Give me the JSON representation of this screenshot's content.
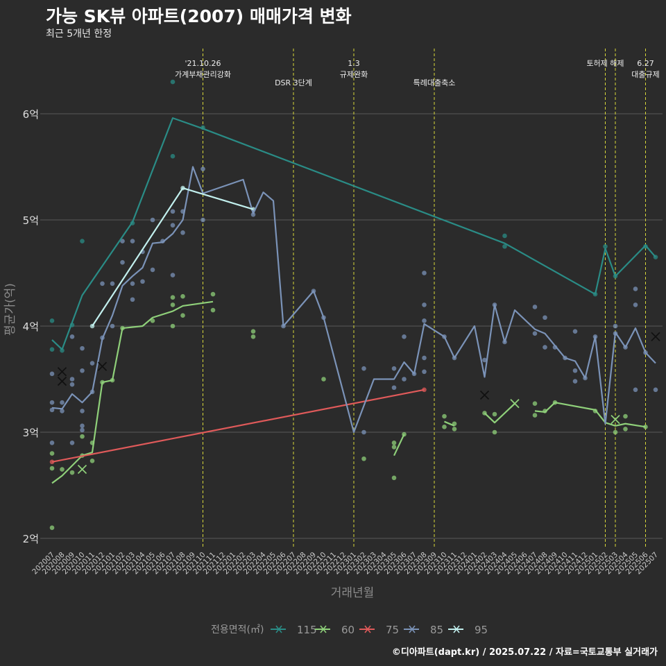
{
  "title": "가능 SK뷰 아파트(2007) 매매가격 변화",
  "subtitle": "최근 5개년 한정",
  "caption": "©디아파트(dapt.kr) / 2025.07.22 / 자료=국토교통부 실거래가",
  "chart_data": {
    "type": "line",
    "xlabel": "거래년월",
    "ylabel": "평균가(억)",
    "x": [
      "202007",
      "202008",
      "202009",
      "202010",
      "202011",
      "202012",
      "202101",
      "202102",
      "202103",
      "202104",
      "202105",
      "202106",
      "202107",
      "202108",
      "202109",
      "202110",
      "202111",
      "202112",
      "202201",
      "202202",
      "202203",
      "202204",
      "202205",
      "202206",
      "202207",
      "202208",
      "202209",
      "202210",
      "202211",
      "202212",
      "202301",
      "202302",
      "202303",
      "202304",
      "202305",
      "202306",
      "202307",
      "202308",
      "202309",
      "202310",
      "202311",
      "202312",
      "202401",
      "202402",
      "202403",
      "202404",
      "202405",
      "202406",
      "202407",
      "202408",
      "202409",
      "202410",
      "202411",
      "202412",
      "202501",
      "202502",
      "202503",
      "202504",
      "202505",
      "202506",
      "202507"
    ],
    "yticks": [
      {
        "value": 2,
        "label": "2억"
      },
      {
        "value": 3,
        "label": "3억"
      },
      {
        "value": 4,
        "label": "4억"
      },
      {
        "value": 5,
        "label": "5억"
      },
      {
        "value": 6,
        "label": "6억"
      }
    ],
    "ylim": [
      1.9,
      6.45
    ],
    "grid": "horizontal",
    "legend": {
      "title": "전용면적(㎡)",
      "position": "bottom"
    },
    "events": [
      {
        "x": "202110",
        "lines": [
          "'21.10.26",
          "가계부채관리강화"
        ],
        "level": 1
      },
      {
        "x": "202207",
        "lines": [
          "DSR 3단계"
        ],
        "level": 2
      },
      {
        "x": "202301",
        "lines": [
          "1.3",
          "규제완화"
        ],
        "level": 1
      },
      {
        "x": "202309",
        "lines": [
          "특례대출축소"
        ],
        "level": 2
      },
      {
        "x": "202502",
        "lines": [
          "토허제 해제"
        ],
        "level": 1
      },
      {
        "x": "202503",
        "lines": [],
        "level": 1
      },
      {
        "x": "202506",
        "lines": [
          "6.27",
          "대출규제"
        ],
        "level": 1
      }
    ],
    "series": [
      {
        "name": "115",
        "color": "#2a8c86",
        "line": [
          [
            "202007",
            3.87
          ],
          [
            "202008",
            3.78
          ],
          [
            "202010",
            4.29
          ],
          [
            "202103",
            4.98
          ],
          [
            "202107",
            5.96
          ],
          [
            "202110",
            5.86
          ],
          [
            "202404",
            4.78
          ],
          [
            "202501",
            4.3
          ],
          [
            "202502",
            4.73
          ],
          [
            "202503",
            4.47
          ],
          [
            "202506",
            4.76
          ],
          [
            "202507",
            4.65
          ]
        ],
        "points": [
          [
            "202007",
            4.05
          ],
          [
            "202007",
            3.78
          ],
          [
            "202008",
            3.77
          ],
          [
            "202009",
            4.01
          ],
          [
            "202010",
            4.8
          ],
          [
            "202103",
            4.97
          ],
          [
            "202107",
            6.3
          ],
          [
            "202107",
            5.6
          ],
          [
            "202110",
            5.87
          ],
          [
            "202404",
            4.75
          ],
          [
            "202404",
            4.85
          ],
          [
            "202501",
            4.3
          ],
          [
            "202502",
            4.75
          ],
          [
            "202503",
            4.47
          ],
          [
            "202506",
            4.75
          ],
          [
            "202507",
            4.65
          ]
        ],
        "crosses": []
      },
      {
        "name": "60",
        "color": "#8fd07a",
        "line": [
          [
            "202007",
            2.52
          ],
          [
            "202008",
            2.59
          ],
          [
            "202010",
            2.78
          ],
          [
            "202011",
            2.81
          ],
          [
            "202012",
            3.47
          ],
          [
            "202101",
            3.49
          ],
          [
            "202102",
            3.98
          ],
          [
            "202104",
            4.0
          ],
          [
            "202105",
            4.08
          ],
          [
            "202107",
            4.14
          ],
          [
            "202108",
            4.19
          ],
          [
            "202111",
            4.23
          ]
        ],
        "line2": [
          [
            "202305",
            2.78
          ],
          [
            "202306",
            2.98
          ]
        ],
        "line3": [
          [
            "202310",
            3.1
          ],
          [
            "202311",
            3.06
          ]
        ],
        "line4": [
          [
            "202402",
            3.18
          ],
          [
            "202403",
            3.09
          ],
          [
            "202405",
            3.27
          ]
        ],
        "line5": [
          [
            "202407",
            3.2
          ],
          [
            "202408",
            3.19
          ],
          [
            "202409",
            3.28
          ],
          [
            "202501",
            3.21
          ],
          [
            "202502",
            3.09
          ],
          [
            "202503",
            3.06
          ],
          [
            "202504",
            3.08
          ],
          [
            "202506",
            3.05
          ]
        ],
        "points": [
          [
            "202007",
            2.1
          ],
          [
            "202007",
            2.8
          ],
          [
            "202007",
            2.66
          ],
          [
            "202008",
            2.65
          ],
          [
            "202009",
            2.62
          ],
          [
            "202010",
            2.96
          ],
          [
            "202010",
            2.78
          ],
          [
            "202011",
            2.73
          ],
          [
            "202011",
            2.9
          ],
          [
            "202012",
            3.47
          ],
          [
            "202101",
            3.49
          ],
          [
            "202102",
            3.98
          ],
          [
            "202105",
            4.05
          ],
          [
            "202107",
            4.27
          ],
          [
            "202107",
            4.2
          ],
          [
            "202107",
            4.0
          ],
          [
            "202108",
            4.1
          ],
          [
            "202108",
            4.28
          ],
          [
            "202111",
            4.3
          ],
          [
            "202111",
            4.15
          ],
          [
            "202203",
            3.95
          ],
          [
            "202203",
            3.9
          ],
          [
            "202210",
            3.5
          ],
          [
            "202302",
            2.75
          ],
          [
            "202305",
            2.9
          ],
          [
            "202305",
            2.86
          ],
          [
            "202305",
            2.57
          ],
          [
            "202306",
            2.98
          ],
          [
            "202310",
            3.15
          ],
          [
            "202310",
            3.05
          ],
          [
            "202311",
            3.08
          ],
          [
            "202311",
            3.03
          ],
          [
            "202402",
            3.18
          ],
          [
            "202403",
            3.17
          ],
          [
            "202403",
            3.0
          ],
          [
            "202407",
            3.27
          ],
          [
            "202407",
            3.16
          ],
          [
            "202408",
            3.2
          ],
          [
            "202409",
            3.28
          ],
          [
            "202501",
            3.2
          ],
          [
            "202503",
            3.0
          ],
          [
            "202504",
            3.15
          ],
          [
            "202504",
            3.03
          ],
          [
            "202506",
            3.05
          ]
        ],
        "crosses": [
          [
            "202010",
            2.65
          ],
          [
            "202405",
            3.27
          ],
          [
            "202503",
            3.12
          ]
        ]
      },
      {
        "name": "75",
        "color": "#e05a5a",
        "line": [
          [
            "202007",
            2.72
          ],
          [
            "202308",
            3.4
          ]
        ],
        "points": [
          [
            "202007",
            2.72
          ],
          [
            "202308",
            3.4
          ]
        ],
        "crosses": []
      },
      {
        "name": "85",
        "color": "#7b93b8",
        "line": [
          [
            "202007",
            3.23
          ],
          [
            "202008",
            3.22
          ],
          [
            "202009",
            3.36
          ],
          [
            "202010",
            3.28
          ],
          [
            "202011",
            3.38
          ],
          [
            "202012",
            3.88
          ],
          [
            "202101",
            4.1
          ],
          [
            "202102",
            4.38
          ],
          [
            "202103",
            4.47
          ],
          [
            "202104",
            4.55
          ],
          [
            "202105",
            4.78
          ],
          [
            "202106",
            4.79
          ],
          [
            "202107",
            4.87
          ],
          [
            "202108",
            5.0
          ],
          [
            "202109",
            5.5
          ],
          [
            "202110",
            5.25
          ],
          [
            "202202",
            5.38
          ],
          [
            "202203",
            5.06
          ],
          [
            "202204",
            5.26
          ],
          [
            "202205",
            5.18
          ],
          [
            "202206",
            4.0
          ],
          [
            "202209",
            4.33
          ],
          [
            "202210",
            4.08
          ],
          [
            "202301",
            3.0
          ],
          [
            "202303",
            3.5
          ],
          [
            "202305",
            3.5
          ],
          [
            "202306",
            3.66
          ],
          [
            "202307",
            3.55
          ],
          [
            "202308",
            4.02
          ],
          [
            "202310",
            3.9
          ],
          [
            "202311",
            3.7
          ],
          [
            "202401",
            4.0
          ],
          [
            "202402",
            3.52
          ],
          [
            "202403",
            4.2
          ],
          [
            "202404",
            3.85
          ],
          [
            "202405",
            4.15
          ],
          [
            "202407",
            3.97
          ],
          [
            "202408",
            3.93
          ],
          [
            "202410",
            3.7
          ],
          [
            "202411",
            3.67
          ],
          [
            "202412",
            3.51
          ],
          [
            "202501",
            3.9
          ],
          [
            "202502",
            3.08
          ],
          [
            "202503",
            3.94
          ],
          [
            "202504",
            3.8
          ],
          [
            "202505",
            3.98
          ],
          [
            "202506",
            3.75
          ],
          [
            "202507",
            3.65
          ]
        ],
        "points": [
          [
            "202007",
            3.55
          ],
          [
            "202007",
            3.28
          ],
          [
            "202007",
            3.21
          ],
          [
            "202007",
            2.9
          ],
          [
            "202008",
            3.2
          ],
          [
            "202008",
            3.28
          ],
          [
            "202009",
            3.9
          ],
          [
            "202009",
            3.5
          ],
          [
            "202009",
            3.45
          ],
          [
            "202009",
            2.9
          ],
          [
            "202010",
            3.79
          ],
          [
            "202010",
            3.58
          ],
          [
            "202010",
            3.2
          ],
          [
            "202010",
            3.06
          ],
          [
            "202010",
            3.02
          ],
          [
            "202011",
            3.65
          ],
          [
            "202011",
            3.38
          ],
          [
            "202012",
            4.4
          ],
          [
            "202012",
            3.89
          ],
          [
            "202101",
            4.4
          ],
          [
            "202101",
            4.0
          ],
          [
            "202102",
            4.8
          ],
          [
            "202102",
            4.6
          ],
          [
            "202103",
            4.8
          ],
          [
            "202103",
            4.4
          ],
          [
            "202103",
            4.25
          ],
          [
            "202104",
            4.7
          ],
          [
            "202104",
            4.42
          ],
          [
            "202105",
            5.0
          ],
          [
            "202105",
            4.53
          ],
          [
            "202106",
            4.8
          ],
          [
            "202107",
            5.08
          ],
          [
            "202107",
            4.95
          ],
          [
            "202107",
            4.48
          ],
          [
            "202108",
            5.08
          ],
          [
            "202108",
            4.88
          ],
          [
            "202110",
            5.48
          ],
          [
            "202110",
            5.0
          ],
          [
            "202203",
            5.05
          ],
          [
            "202206",
            4.0
          ],
          [
            "202209",
            4.33
          ],
          [
            "202210",
            4.08
          ],
          [
            "202302",
            3.6
          ],
          [
            "202302",
            3.0
          ],
          [
            "202305",
            3.6
          ],
          [
            "202305",
            3.42
          ],
          [
            "202306",
            3.9
          ],
          [
            "202306",
            3.5
          ],
          [
            "202307",
            3.55
          ],
          [
            "202308",
            4.5
          ],
          [
            "202308",
            4.2
          ],
          [
            "202308",
            4.05
          ],
          [
            "202308",
            3.7
          ],
          [
            "202308",
            3.57
          ],
          [
            "202310",
            3.9
          ],
          [
            "202311",
            3.7
          ],
          [
            "202402",
            3.68
          ],
          [
            "202403",
            4.2
          ],
          [
            "202404",
            3.85
          ],
          [
            "202407",
            4.18
          ],
          [
            "202407",
            3.93
          ],
          [
            "202408",
            4.08
          ],
          [
            "202408",
            3.8
          ],
          [
            "202409",
            3.8
          ],
          [
            "202410",
            3.7
          ],
          [
            "202411",
            3.95
          ],
          [
            "202411",
            3.58
          ],
          [
            "202411",
            3.48
          ],
          [
            "202412",
            3.51
          ],
          [
            "202501",
            3.9
          ],
          [
            "202503",
            4.0
          ],
          [
            "202503",
            3.93
          ],
          [
            "202504",
            3.8
          ],
          [
            "202505",
            4.35
          ],
          [
            "202505",
            4.2
          ],
          [
            "202505",
            3.4
          ],
          [
            "202506",
            3.75
          ],
          [
            "202507",
            3.4
          ]
        ],
        "crosses": [
          [
            "202008",
            3.57
          ],
          [
            "202008",
            3.48
          ],
          [
            "202012",
            3.62
          ],
          [
            "202402",
            3.35
          ],
          [
            "202507",
            3.9
          ]
        ]
      },
      {
        "name": "95",
        "color": "#c2f0ee",
        "line": [
          [
            "202011",
            4.0
          ],
          [
            "202108",
            5.3
          ],
          [
            "202203",
            5.1
          ]
        ],
        "points": [
          [
            "202011",
            4.0
          ],
          [
            "202108",
            5.3
          ],
          [
            "202203",
            5.1
          ]
        ],
        "crosses": []
      }
    ]
  }
}
